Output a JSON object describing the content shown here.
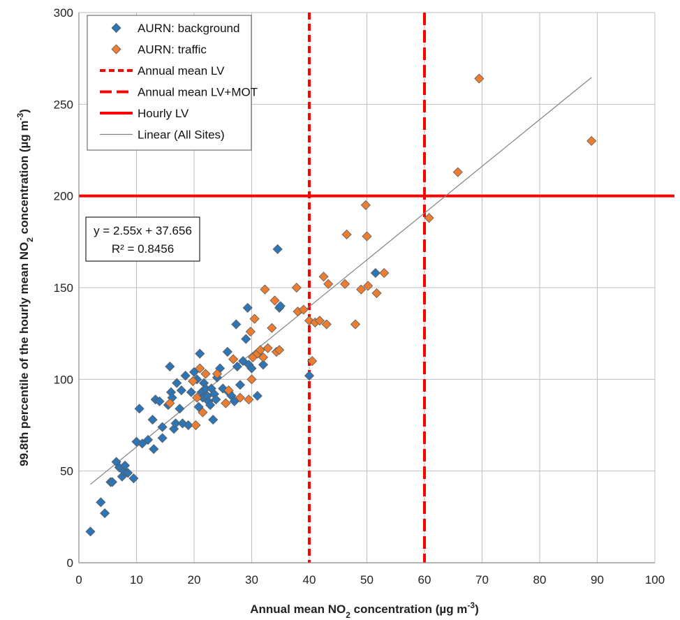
{
  "chart_data": {
    "type": "scatter",
    "xlabel": {
      "pre": "Annual mean NO",
      "sub": "2",
      "post": " concentration (µg m",
      "sup": "-3",
      "end": ")"
    },
    "ylabel": {
      "pre": "99.8th percentile of the hourly mean NO",
      "sub": "2",
      "post": " concentration (µg m",
      "sup": "-3",
      "end": ")"
    },
    "xlim": [
      0,
      100
    ],
    "ylim": [
      0,
      300
    ],
    "xticks": [
      "0",
      "10",
      "20",
      "30",
      "40",
      "50",
      "60",
      "70",
      "80",
      "90",
      "100"
    ],
    "yticks": [
      "0",
      "50",
      "100",
      "150",
      "200",
      "250",
      "300"
    ],
    "grid": true,
    "legend_position": "top-left",
    "colors": {
      "background": "#2e75b6",
      "traffic": "#ed7d31",
      "limit": "#ff0000",
      "trend": "#808080",
      "grid": "#bfbfbf"
    },
    "legend": [
      {
        "key": "background",
        "label": "AURN: background",
        "kind": "marker"
      },
      {
        "key": "traffic",
        "label": "AURN: traffic",
        "kind": "marker"
      },
      {
        "key": "annual_lv",
        "label": "Annual mean LV",
        "kind": "short-dash"
      },
      {
        "key": "annual_lv_mot",
        "label": "Annual mean LV+MOT",
        "kind": "long-dash"
      },
      {
        "key": "hourly_lv",
        "label": "Hourly LV",
        "kind": "solid"
      },
      {
        "key": "linear",
        "label": "Linear (All Sites)",
        "kind": "thin"
      }
    ],
    "reference_lines": {
      "annual_lv_x": 40,
      "annual_lv_mot_x": 60,
      "hourly_lv_y": 200
    },
    "trendline": {
      "slope": 2.55,
      "intercept": 37.656,
      "x_range": [
        2,
        89
      ]
    },
    "equation": {
      "line1": "y = 2.55x + 37.656",
      "line2": "R² = 0.8456"
    },
    "series": [
      {
        "name": "AURN: background",
        "key": "background",
        "points": [
          [
            2,
            17
          ],
          [
            3.8,
            33
          ],
          [
            4.5,
            27
          ],
          [
            5.5,
            44
          ],
          [
            5.8,
            44
          ],
          [
            6.5,
            55
          ],
          [
            7,
            52
          ],
          [
            7.5,
            47
          ],
          [
            7.8,
            50
          ],
          [
            8,
            53
          ],
          [
            8.5,
            49
          ],
          [
            9.5,
            46
          ],
          [
            10,
            66
          ],
          [
            10.5,
            84
          ],
          [
            11,
            65
          ],
          [
            12,
            67
          ],
          [
            12.8,
            78
          ],
          [
            13,
            62
          ],
          [
            13.3,
            89
          ],
          [
            14,
            88
          ],
          [
            14.5,
            74
          ],
          [
            14.5,
            68
          ],
          [
            15.5,
            86
          ],
          [
            15.8,
            107
          ],
          [
            16,
            93
          ],
          [
            16.2,
            90
          ],
          [
            16.5,
            73
          ],
          [
            16.8,
            76
          ],
          [
            17,
            98
          ],
          [
            17.5,
            84
          ],
          [
            17.8,
            94
          ],
          [
            18,
            76
          ],
          [
            18.5,
            102
          ],
          [
            19,
            75
          ],
          [
            19.5,
            93
          ],
          [
            20,
            104
          ],
          [
            20.5,
            100
          ],
          [
            20.8,
            85
          ],
          [
            21,
            114
          ],
          [
            21.3,
            93
          ],
          [
            21.5,
            90
          ],
          [
            21.7,
            98
          ],
          [
            22,
            95
          ],
          [
            22.3,
            91
          ],
          [
            22.5,
            88
          ],
          [
            22.8,
            86
          ],
          [
            23,
            95
          ],
          [
            23.3,
            78
          ],
          [
            23.5,
            92
          ],
          [
            23.8,
            89
          ],
          [
            24,
            101
          ],
          [
            24.5,
            106
          ],
          [
            25,
            95
          ],
          [
            25.5,
            87
          ],
          [
            25.8,
            115
          ],
          [
            26,
            93
          ],
          [
            26.5,
            91
          ],
          [
            27,
            88
          ],
          [
            27.3,
            130
          ],
          [
            27.5,
            107
          ],
          [
            28,
            97
          ],
          [
            28.5,
            110
          ],
          [
            29,
            122
          ],
          [
            29.3,
            139
          ],
          [
            29.5,
            108
          ],
          [
            30,
            106
          ],
          [
            31,
            91
          ],
          [
            32,
            108
          ],
          [
            34.5,
            171
          ],
          [
            34.8,
            139
          ],
          [
            35,
            140
          ],
          [
            40,
            102
          ],
          [
            51.5,
            158
          ]
        ]
      },
      {
        "name": "AURN: traffic",
        "key": "traffic",
        "points": [
          [
            15.8,
            87
          ],
          [
            19.8,
            99
          ],
          [
            20.3,
            75
          ],
          [
            20.5,
            90
          ],
          [
            21,
            106
          ],
          [
            21.5,
            82
          ],
          [
            22,
            103
          ],
          [
            24,
            103
          ],
          [
            25.5,
            87
          ],
          [
            26,
            94
          ],
          [
            26.8,
            111
          ],
          [
            28,
            90
          ],
          [
            29.5,
            89
          ],
          [
            29.8,
            126
          ],
          [
            30,
            100
          ],
          [
            30.2,
            112
          ],
          [
            30.5,
            133
          ],
          [
            31,
            114
          ],
          [
            31.5,
            116
          ],
          [
            32,
            112
          ],
          [
            32.3,
            149
          ],
          [
            32.8,
            117
          ],
          [
            33.5,
            128
          ],
          [
            34,
            143
          ],
          [
            34.3,
            115
          ],
          [
            34.8,
            116
          ],
          [
            37.8,
            150
          ],
          [
            38,
            137
          ],
          [
            39,
            138
          ],
          [
            40,
            132
          ],
          [
            40.5,
            110
          ],
          [
            41,
            131
          ],
          [
            41.8,
            132
          ],
          [
            42.5,
            156
          ],
          [
            43,
            130
          ],
          [
            43.3,
            152
          ],
          [
            46.2,
            152
          ],
          [
            46.5,
            179
          ],
          [
            48,
            130
          ],
          [
            49,
            149
          ],
          [
            49.8,
            195
          ],
          [
            50,
            178
          ],
          [
            50.2,
            151
          ],
          [
            51.7,
            147
          ],
          [
            53,
            158
          ],
          [
            60.8,
            188
          ],
          [
            65.8,
            213
          ],
          [
            69.5,
            264
          ],
          [
            89,
            230
          ]
        ]
      }
    ]
  }
}
